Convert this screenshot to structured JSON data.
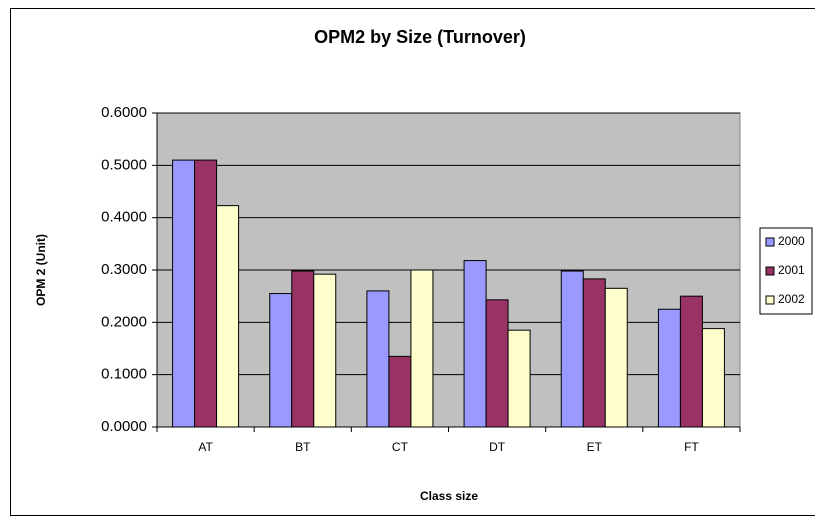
{
  "chart_data": {
    "type": "bar",
    "title": "OPM2 by Size (Turnover)",
    "x_label": "Class size",
    "y_label": "OPM 2 (Unit)",
    "categories": [
      "AT",
      "BT",
      "CT",
      "DT",
      "ET",
      "FT"
    ],
    "series": [
      {
        "name": "2000",
        "color": "#9999ff",
        "values": [
          0.51,
          0.255,
          0.26,
          0.318,
          0.298,
          0.225
        ]
      },
      {
        "name": "2001",
        "color": "#993366",
        "values": [
          0.51,
          0.298,
          0.135,
          0.243,
          0.283,
          0.25
        ]
      },
      {
        "name": "2002",
        "color": "#ffffcc",
        "values": [
          0.423,
          0.292,
          0.3,
          0.185,
          0.265,
          0.188
        ]
      }
    ],
    "ylim": [
      0,
      0.6
    ],
    "yticks": [
      {
        "value": 0,
        "label": "0.0000"
      },
      {
        "value": 0.1,
        "label": "0.1000"
      },
      {
        "value": 0.2,
        "label": "0.2000"
      },
      {
        "value": 0.3,
        "label": "0.3000"
      },
      {
        "value": 0.4,
        "label": "0.4000"
      },
      {
        "value": 0.5,
        "label": "0.5000"
      },
      {
        "value": 0.6,
        "label": "0.6000"
      }
    ],
    "grid": true,
    "legend": "right"
  }
}
